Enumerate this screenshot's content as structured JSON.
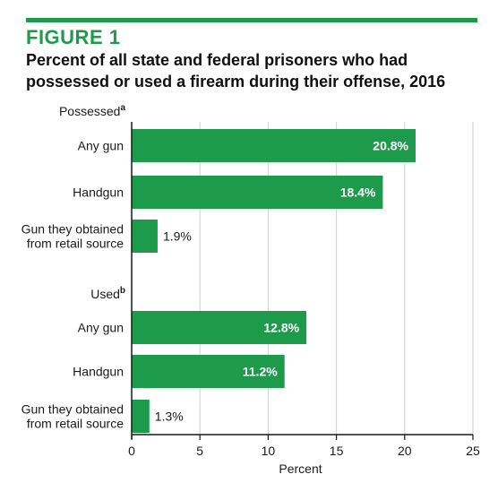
{
  "figure": {
    "label": "FIGURE 1",
    "title_line1": "Percent of all state and federal prisoners who had",
    "title_line2": "possessed or used a firearm during their offense, 2016"
  },
  "colors": {
    "accent": "#1e9a4b",
    "bar": "#1e9a4b",
    "grid": "#cfcfcf",
    "axis": "#1a1a1a"
  },
  "chart_data": {
    "type": "bar",
    "orientation": "horizontal",
    "xlabel": "Percent",
    "xlim": [
      0,
      25
    ],
    "xticks": [
      0,
      5,
      10,
      15,
      20,
      25
    ],
    "grid": "vertical",
    "groups": [
      {
        "name": "Possessed",
        "superscript": "a",
        "bars": [
          {
            "label": [
              "Any gun"
            ],
            "value": 20.8,
            "value_label": "20.8%"
          },
          {
            "label": [
              "Handgun"
            ],
            "value": 18.4,
            "value_label": "18.4%"
          },
          {
            "label": [
              "Gun they obtained",
              "from retail source"
            ],
            "value": 1.9,
            "value_label": "1.9%"
          }
        ]
      },
      {
        "name": "Used",
        "superscript": "b",
        "bars": [
          {
            "label": [
              "Any gun"
            ],
            "value": 12.8,
            "value_label": "12.8%"
          },
          {
            "label": [
              "Handgun"
            ],
            "value": 11.2,
            "value_label": "11.2%"
          },
          {
            "label": [
              "Gun they obtained",
              "from retail source"
            ],
            "value": 1.3,
            "value_label": "1.3%"
          }
        ]
      }
    ]
  }
}
